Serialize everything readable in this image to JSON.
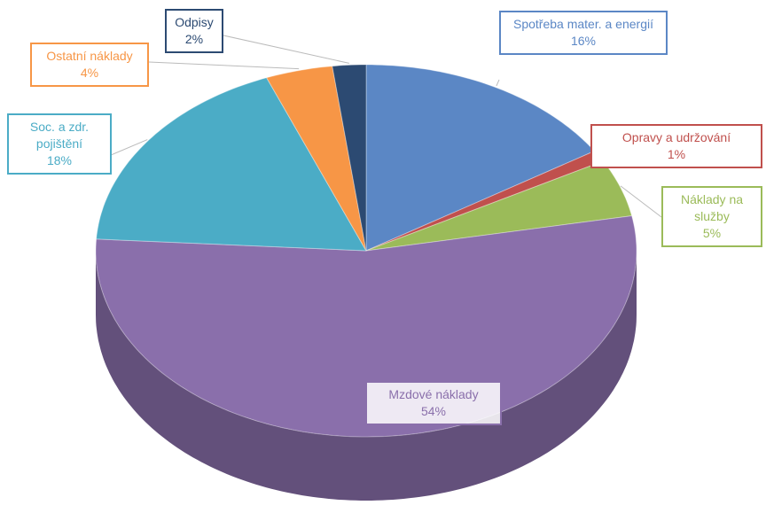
{
  "chart_data": {
    "type": "pie",
    "categories": [
      "Spotřeba mater. a energií",
      "Opravy a udržování",
      "Náklady na služby",
      "Mzdové náklady",
      "Soc. a zdr. pojištění",
      "Ostatní náklady",
      "Odpisy"
    ],
    "values": [
      16,
      1,
      5,
      54,
      18,
      4,
      2
    ],
    "value_labels": [
      "16%",
      "1%",
      "5%",
      "54%",
      "18%",
      "4%",
      "2%"
    ],
    "colors": [
      "#5b87c5",
      "#c0504d",
      "#9bbb59",
      "#8a6fab",
      "#4bacc6",
      "#f79646",
      "#2c4a72"
    ]
  }
}
